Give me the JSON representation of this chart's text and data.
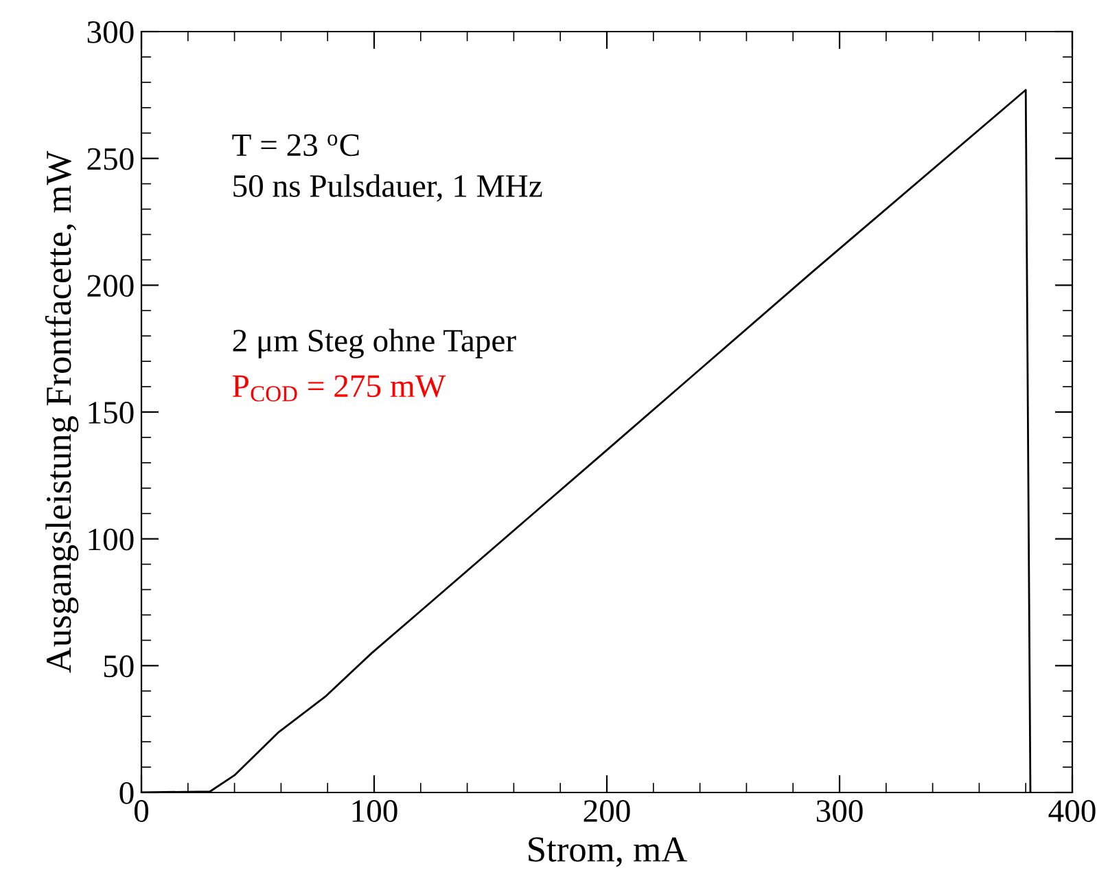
{
  "chart_data": {
    "type": "line",
    "xlabel": "Strom, mA",
    "ylabel": "Ausgangsleistung Frontfacette, mW",
    "x": [
      0,
      29.5,
      40,
      59,
      79,
      99,
      118,
      200,
      288,
      380,
      382
    ],
    "series": [
      {
        "color": "#000000",
        "values": [
          0,
          0.4,
          6.8,
          23.8,
          37.8,
          55,
          70,
          135,
          205,
          277,
          0
        ]
      }
    ],
    "xlim": [
      0,
      400
    ],
    "xticks": [
      0,
      100,
      200,
      300,
      400
    ],
    "ylim": [
      0,
      300
    ],
    "yticks": [
      0,
      50,
      100,
      150,
      200,
      250,
      300
    ],
    "grid": false,
    "legend": false,
    "marker": "none",
    "line_style": "solid",
    "annotations": [
      "T = 23 $^{o}$C\n50 ns Pulsdauer, 1 MHz",
      "2 μm Steg ohne Taper",
      "P$_{COD}$ = 275 mW"
    ]
  }
}
